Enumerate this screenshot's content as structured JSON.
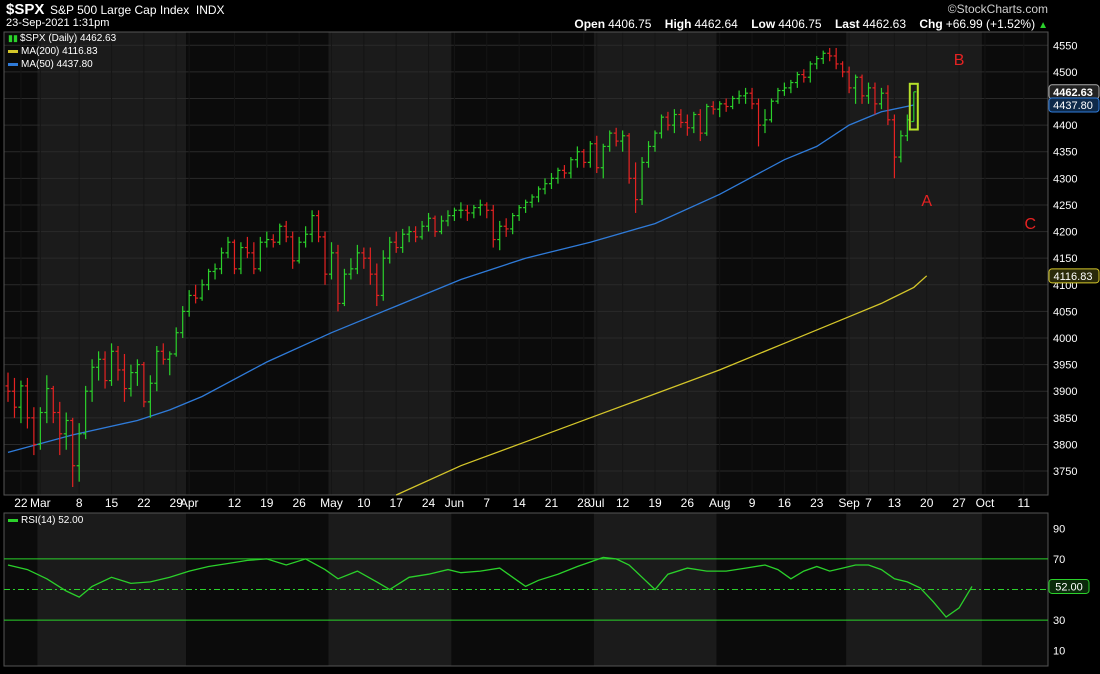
{
  "header": {
    "symbol": "$SPX",
    "name": "S&P 500 Large Cap Index",
    "exchange": "INDX",
    "datetime": "23-Sep-2021 1:31pm",
    "logo": "©StockCharts.com",
    "open_label": "Open",
    "open": "4406.75",
    "high_label": "High",
    "high": "4462.64",
    "low_label": "Low",
    "low": "4406.75",
    "last_label": "Last",
    "last": "4462.63",
    "chg_label": "Chg",
    "chg": "+66.99 (+1.52%)"
  },
  "legend": {
    "price": "$SPX (Daily) 4462.63",
    "ma200": "MA(200) 4116.83",
    "ma50": "MA(50) 4437.80",
    "rsi": "RSI(14) 52.00"
  },
  "colors": {
    "up": "#2bd12b",
    "down": "#e52222",
    "ma50": "#2f7bd9",
    "ma200": "#d4c62a",
    "rsi": "#2bd12b",
    "annot": "#e52222",
    "grid": "#2a2a2a",
    "highlight": "#b6e02a"
  },
  "chart_data": {
    "type": "ohlc",
    "x_labels": [
      {
        "i": 2,
        "label": "22"
      },
      {
        "i": 5,
        "label": "Mar"
      },
      {
        "i": 11,
        "label": "8"
      },
      {
        "i": 16,
        "label": "15"
      },
      {
        "i": 21,
        "label": "22"
      },
      {
        "i": 26,
        "label": "29"
      },
      {
        "i": 28,
        "label": "Apr"
      },
      {
        "i": 35,
        "label": "12"
      },
      {
        "i": 40,
        "label": "19"
      },
      {
        "i": 45,
        "label": "26"
      },
      {
        "i": 50,
        "label": "May"
      },
      {
        "i": 55,
        "label": "10"
      },
      {
        "i": 60,
        "label": "17"
      },
      {
        "i": 65,
        "label": "24"
      },
      {
        "i": 69,
        "label": "Jun"
      },
      {
        "i": 74,
        "label": "7"
      },
      {
        "i": 79,
        "label": "14"
      },
      {
        "i": 84,
        "label": "21"
      },
      {
        "i": 89,
        "label": "28"
      },
      {
        "i": 91,
        "label": "Jul"
      },
      {
        "i": 95,
        "label": "12"
      },
      {
        "i": 100,
        "label": "19"
      },
      {
        "i": 105,
        "label": "26"
      },
      {
        "i": 110,
        "label": "Aug"
      },
      {
        "i": 115,
        "label": "9"
      },
      {
        "i": 120,
        "label": "16"
      },
      {
        "i": 125,
        "label": "23"
      },
      {
        "i": 130,
        "label": "Sep"
      },
      {
        "i": 133,
        "label": "7"
      },
      {
        "i": 137,
        "label": "13"
      },
      {
        "i": 142,
        "label": "20"
      },
      {
        "i": 147,
        "label": "27"
      },
      {
        "i": 151,
        "label": "Oct"
      },
      {
        "i": 157,
        "label": "11"
      }
    ],
    "price_ticks": [
      3750,
      3800,
      3850,
      3900,
      3950,
      4000,
      4050,
      4100,
      4150,
      4200,
      4250,
      4300,
      4350,
      4400,
      4450,
      4500,
      4550
    ],
    "price_ylim": [
      3705,
      4575
    ],
    "price_badges": [
      {
        "value": 4462.63,
        "label": "4462.63",
        "style": "dark"
      },
      {
        "value": 4437.8,
        "label": "4437.80",
        "style": "blue"
      },
      {
        "value": 4116.83,
        "label": "4116.83",
        "style": "yellow"
      }
    ],
    "rsi_ticks": [
      10,
      30,
      50,
      70,
      90
    ],
    "rsi_levels": [
      30,
      50,
      70
    ],
    "rsi_ylim": [
      0,
      100
    ],
    "rsi_badge": {
      "value": 52,
      "label": "52.00"
    },
    "ma50": [
      [
        0,
        3785
      ],
      [
        10,
        3818
      ],
      [
        20,
        3845
      ],
      [
        25,
        3865
      ],
      [
        30,
        3890
      ],
      [
        40,
        3955
      ],
      [
        50,
        4010
      ],
      [
        60,
        4060
      ],
      [
        70,
        4110
      ],
      [
        80,
        4150
      ],
      [
        90,
        4180
      ],
      [
        100,
        4215
      ],
      [
        110,
        4270
      ],
      [
        120,
        4335
      ],
      [
        125,
        4360
      ],
      [
        130,
        4400
      ],
      [
        135,
        4425
      ],
      [
        140,
        4437.8
      ]
    ],
    "ma200": [
      [
        60,
        3705
      ],
      [
        70,
        3760
      ],
      [
        80,
        3805
      ],
      [
        90,
        3850
      ],
      [
        100,
        3895
      ],
      [
        110,
        3940
      ],
      [
        120,
        3990
      ],
      [
        130,
        4040
      ],
      [
        135,
        4065
      ],
      [
        140,
        4095
      ],
      [
        142,
        4116.83
      ]
    ],
    "ohlc": [
      [
        3910,
        3935,
        3880,
        3900
      ],
      [
        3900,
        3925,
        3850,
        3870
      ],
      [
        3870,
        3920,
        3840,
        3910
      ],
      [
        3910,
        3925,
        3830,
        3850
      ],
      [
        3850,
        3870,
        3780,
        3800
      ],
      [
        3800,
        3870,
        3790,
        3860
      ],
      [
        3860,
        3930,
        3840,
        3905
      ],
      [
        3905,
        3910,
        3840,
        3860
      ],
      [
        3860,
        3880,
        3780,
        3820
      ],
      [
        3820,
        3860,
        3790,
        3845
      ],
      [
        3845,
        3850,
        3720,
        3760
      ],
      [
        3760,
        3840,
        3730,
        3820
      ],
      [
        3820,
        3910,
        3810,
        3900
      ],
      [
        3900,
        3960,
        3880,
        3945
      ],
      [
        3945,
        3975,
        3920,
        3960
      ],
      [
        3960,
        3975,
        3905,
        3920
      ],
      [
        3920,
        3990,
        3910,
        3975
      ],
      [
        3975,
        3985,
        3920,
        3940
      ],
      [
        3940,
        3970,
        3880,
        3905
      ],
      [
        3905,
        3950,
        3890,
        3935
      ],
      [
        3935,
        3960,
        3910,
        3950
      ],
      [
        3950,
        3955,
        3870,
        3880
      ],
      [
        3880,
        3930,
        3850,
        3915
      ],
      [
        3915,
        3985,
        3900,
        3975
      ],
      [
        3975,
        3990,
        3950,
        3960
      ],
      [
        3960,
        3975,
        3930,
        3970
      ],
      [
        3970,
        4020,
        3965,
        4010
      ],
      [
        4010,
        4060,
        4000,
        4050
      ],
      [
        4050,
        4090,
        4040,
        4080
      ],
      [
        4080,
        4100,
        4065,
        4075
      ],
      [
        4075,
        4110,
        4070,
        4100
      ],
      [
        4100,
        4130,
        4090,
        4125
      ],
      [
        4125,
        4140,
        4110,
        4130
      ],
      [
        4130,
        4170,
        4120,
        4160
      ],
      [
        4160,
        4190,
        4150,
        4180
      ],
      [
        4180,
        4185,
        4120,
        4130
      ],
      [
        4130,
        4180,
        4120,
        4170
      ],
      [
        4170,
        4190,
        4150,
        4160
      ],
      [
        4160,
        4180,
        4120,
        4130
      ],
      [
        4130,
        4190,
        4125,
        4180
      ],
      [
        4180,
        4200,
        4170,
        4185
      ],
      [
        4185,
        4195,
        4170,
        4180
      ],
      [
        4180,
        4215,
        4175,
        4210
      ],
      [
        4210,
        4220,
        4180,
        4190
      ],
      [
        4190,
        4200,
        4130,
        4145
      ],
      [
        4145,
        4190,
        4140,
        4180
      ],
      [
        4180,
        4210,
        4170,
        4195
      ],
      [
        4195,
        4240,
        4180,
        4230
      ],
      [
        4230,
        4240,
        4180,
        4190
      ],
      [
        4190,
        4200,
        4100,
        4120
      ],
      [
        4120,
        4180,
        4110,
        4160
      ],
      [
        4160,
        4175,
        4050,
        4065
      ],
      [
        4065,
        4130,
        4060,
        4120
      ],
      [
        4120,
        4150,
        4110,
        4130
      ],
      [
        4130,
        4175,
        4120,
        4160
      ],
      [
        4160,
        4170,
        4130,
        4150
      ],
      [
        4150,
        4170,
        4100,
        4120
      ],
      [
        4120,
        4140,
        4060,
        4080
      ],
      [
        4080,
        4165,
        4070,
        4150
      ],
      [
        4150,
        4190,
        4140,
        4180
      ],
      [
        4180,
        4200,
        4160,
        4170
      ],
      [
        4170,
        4205,
        4160,
        4195
      ],
      [
        4195,
        4210,
        4180,
        4200
      ],
      [
        4200,
        4210,
        4180,
        4190
      ],
      [
        4190,
        4220,
        4185,
        4210
      ],
      [
        4210,
        4235,
        4200,
        4225
      ],
      [
        4225,
        4230,
        4190,
        4200
      ],
      [
        4200,
        4230,
        4195,
        4220
      ],
      [
        4220,
        4240,
        4210,
        4230
      ],
      [
        4230,
        4245,
        4220,
        4240
      ],
      [
        4240,
        4255,
        4225,
        4240
      ],
      [
        4240,
        4250,
        4220,
        4235
      ],
      [
        4235,
        4250,
        4225,
        4245
      ],
      [
        4245,
        4260,
        4230,
        4250
      ],
      [
        4250,
        4255,
        4225,
        4240
      ],
      [
        4240,
        4250,
        4170,
        4185
      ],
      [
        4185,
        4220,
        4165,
        4210
      ],
      [
        4210,
        4225,
        4190,
        4205
      ],
      [
        4205,
        4235,
        4195,
        4230
      ],
      [
        4230,
        4250,
        4220,
        4245
      ],
      [
        4245,
        4260,
        4235,
        4255
      ],
      [
        4255,
        4270,
        4245,
        4265
      ],
      [
        4265,
        4285,
        4255,
        4280
      ],
      [
        4280,
        4300,
        4270,
        4290
      ],
      [
        4290,
        4310,
        4280,
        4300
      ],
      [
        4300,
        4320,
        4290,
        4315
      ],
      [
        4315,
        4325,
        4300,
        4310
      ],
      [
        4310,
        4340,
        4300,
        4335
      ],
      [
        4335,
        4360,
        4320,
        4350
      ],
      [
        4350,
        4355,
        4320,
        4330
      ],
      [
        4330,
        4370,
        4320,
        4365
      ],
      [
        4365,
        4380,
        4310,
        4320
      ],
      [
        4320,
        4365,
        4300,
        4360
      ],
      [
        4360,
        4390,
        4350,
        4385
      ],
      [
        4385,
        4395,
        4360,
        4370
      ],
      [
        4370,
        4390,
        4350,
        4380
      ],
      [
        4380,
        4385,
        4290,
        4300
      ],
      [
        4300,
        4330,
        4235,
        4260
      ],
      [
        4260,
        4340,
        4250,
        4330
      ],
      [
        4330,
        4370,
        4320,
        4360
      ],
      [
        4360,
        4390,
        4350,
        4385
      ],
      [
        4385,
        4420,
        4375,
        4415
      ],
      [
        4415,
        4425,
        4390,
        4400
      ],
      [
        4400,
        4430,
        4385,
        4420
      ],
      [
        4420,
        4430,
        4395,
        4405
      ],
      [
        4405,
        4420,
        4380,
        4395
      ],
      [
        4395,
        4425,
        4385,
        4420
      ],
      [
        4420,
        4430,
        4370,
        4385
      ],
      [
        4385,
        4440,
        4380,
        4435
      ],
      [
        4435,
        4445,
        4420,
        4430
      ],
      [
        4430,
        4445,
        4415,
        4440
      ],
      [
        4440,
        4450,
        4425,
        4435
      ],
      [
        4435,
        4455,
        4430,
        4450
      ],
      [
        4450,
        4465,
        4440,
        4455
      ],
      [
        4455,
        4470,
        4440,
        4460
      ],
      [
        4460,
        4470,
        4430,
        4440
      ],
      [
        4440,
        4450,
        4360,
        4400
      ],
      [
        4400,
        4430,
        4385,
        4410
      ],
      [
        4410,
        4450,
        4405,
        4445
      ],
      [
        4445,
        4470,
        4440,
        4465
      ],
      [
        4465,
        4480,
        4455,
        4470
      ],
      [
        4470,
        4485,
        4460,
        4480
      ],
      [
        4480,
        4500,
        4470,
        4495
      ],
      [
        4495,
        4505,
        4480,
        4490
      ],
      [
        4490,
        4520,
        4480,
        4515
      ],
      [
        4515,
        4530,
        4505,
        4525
      ],
      [
        4525,
        4540,
        4515,
        4535
      ],
      [
        4535,
        4545,
        4520,
        4530
      ],
      [
        4530,
        4545,
        4505,
        4515
      ],
      [
        4515,
        4520,
        4490,
        4500
      ],
      [
        4500,
        4510,
        4460,
        4470
      ],
      [
        4470,
        4495,
        4440,
        4490
      ],
      [
        4490,
        4495,
        4440,
        4455
      ],
      [
        4455,
        4480,
        4440,
        4470
      ],
      [
        4470,
        4480,
        4420,
        4440
      ],
      [
        4440,
        4470,
        4430,
        4460
      ],
      [
        4460,
        4475,
        4400,
        4410
      ],
      [
        4410,
        4420,
        4300,
        4340
      ],
      [
        4340,
        4390,
        4330,
        4380
      ],
      [
        4380,
        4420,
        4370,
        4410
      ],
      [
        4406.75,
        4462.64,
        4406.75,
        4462.63
      ]
    ],
    "rsi": [
      [
        0,
        66
      ],
      [
        3,
        63
      ],
      [
        6,
        57
      ],
      [
        9,
        49
      ],
      [
        11,
        45
      ],
      [
        13,
        52
      ],
      [
        16,
        58
      ],
      [
        19,
        54
      ],
      [
        22,
        55
      ],
      [
        25,
        58
      ],
      [
        28,
        62
      ],
      [
        31,
        65
      ],
      [
        34,
        67
      ],
      [
        37,
        69
      ],
      [
        40,
        70
      ],
      [
        43,
        66
      ],
      [
        46,
        70
      ],
      [
        49,
        63
      ],
      [
        51,
        57
      ],
      [
        54,
        62
      ],
      [
        57,
        55
      ],
      [
        59,
        50
      ],
      [
        62,
        58
      ],
      [
        65,
        60
      ],
      [
        68,
        63
      ],
      [
        70,
        61
      ],
      [
        73,
        62
      ],
      [
        76,
        64
      ],
      [
        78,
        58
      ],
      [
        80,
        52
      ],
      [
        82,
        56
      ],
      [
        85,
        60
      ],
      [
        88,
        65
      ],
      [
        90,
        68
      ],
      [
        92,
        71
      ],
      [
        94,
        70
      ],
      [
        96,
        66
      ],
      [
        98,
        58
      ],
      [
        100,
        50
      ],
      [
        102,
        60
      ],
      [
        105,
        64
      ],
      [
        108,
        62
      ],
      [
        111,
        62
      ],
      [
        114,
        64
      ],
      [
        117,
        66
      ],
      [
        119,
        63
      ],
      [
        121,
        57
      ],
      [
        123,
        62
      ],
      [
        125,
        65
      ],
      [
        127,
        62
      ],
      [
        129,
        64
      ],
      [
        131,
        66
      ],
      [
        133,
        66
      ],
      [
        135,
        63
      ],
      [
        137,
        57
      ],
      [
        139,
        55
      ],
      [
        141,
        51
      ],
      [
        143,
        42
      ],
      [
        145,
        32
      ],
      [
        147,
        38
      ],
      [
        149,
        52
      ]
    ],
    "annotations": [
      {
        "i": 142,
        "price": 4248,
        "label": "A"
      },
      {
        "i": 147,
        "price": 4513,
        "label": "B"
      },
      {
        "i": 158,
        "price": 4205,
        "label": "C"
      }
    ],
    "highlight_index": 140
  }
}
